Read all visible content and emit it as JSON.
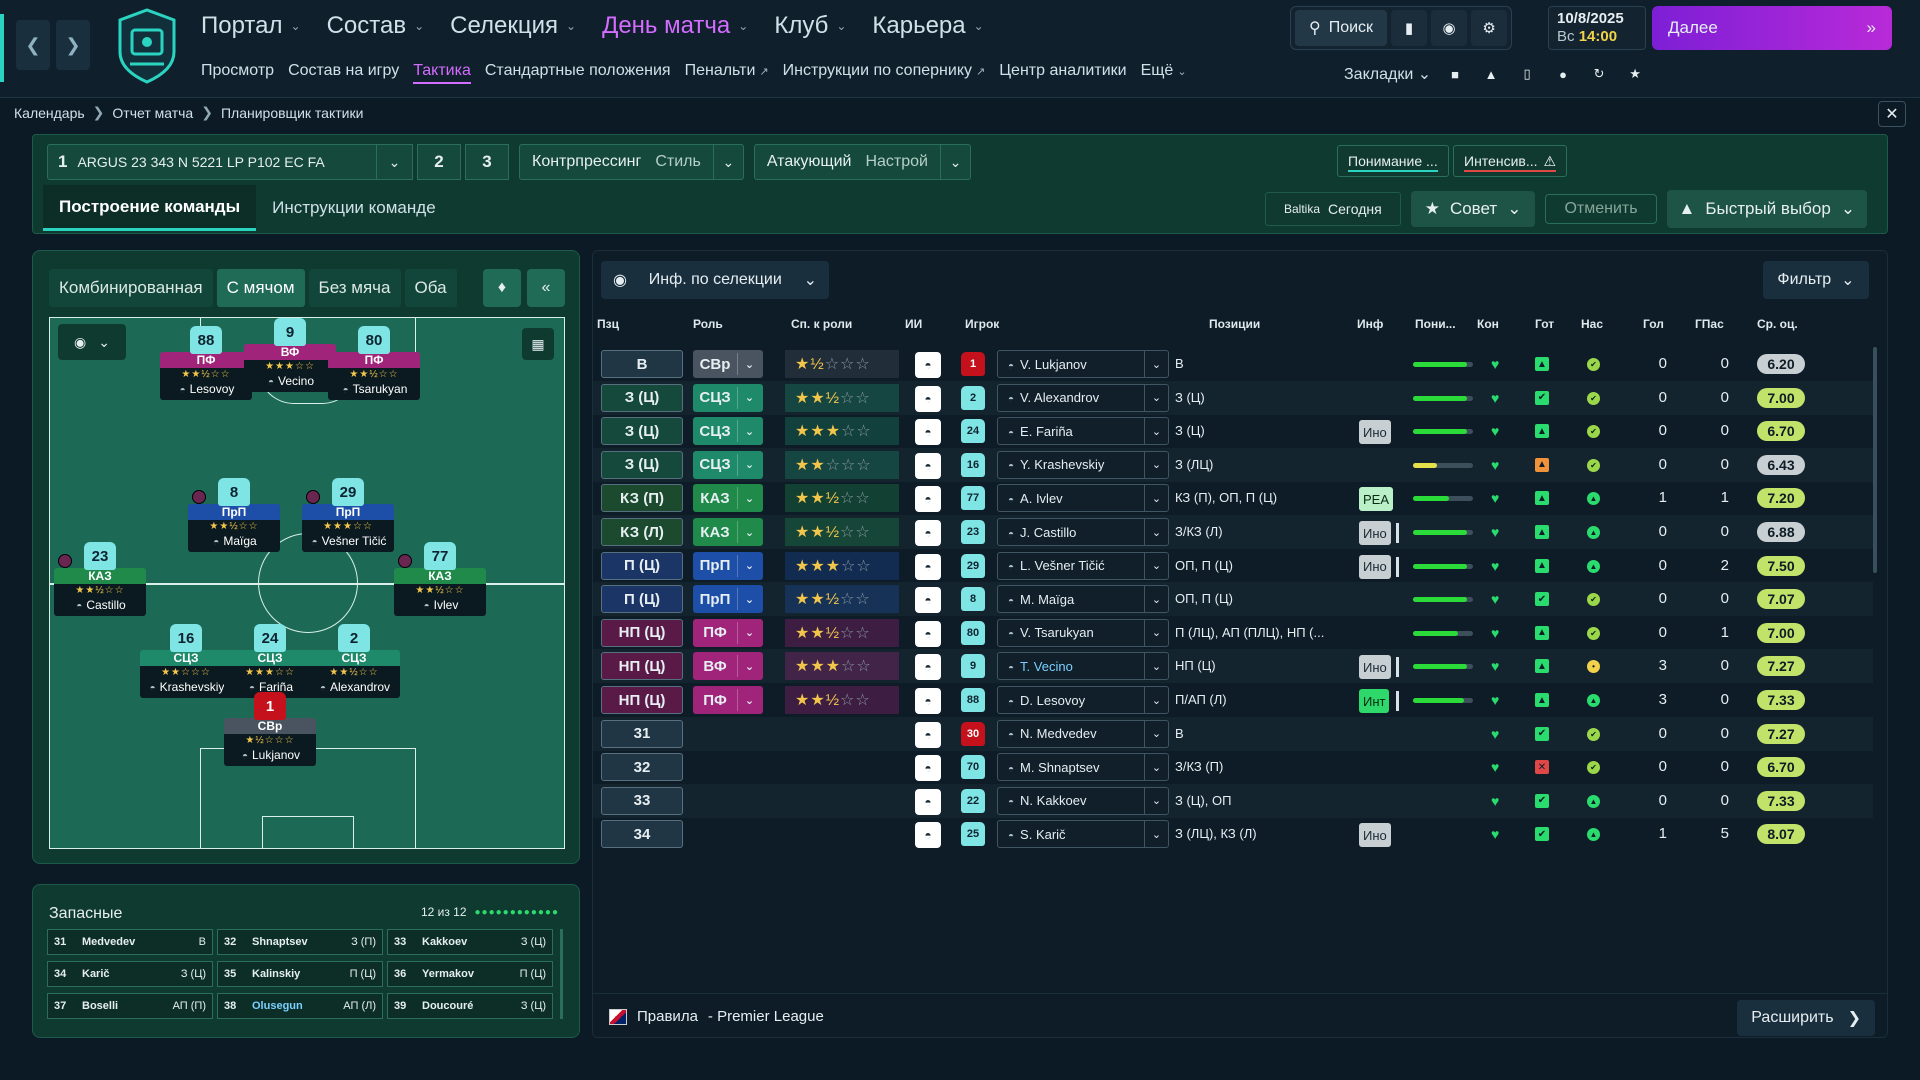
{
  "topbar": {
    "nav": [
      {
        "label": "Портал",
        "active": false
      },
      {
        "label": "Состав",
        "active": false
      },
      {
        "label": "Селекция",
        "active": false
      },
      {
        "label": "День матча",
        "active": true
      },
      {
        "label": "Клуб",
        "active": false
      },
      {
        "label": "Карьера",
        "active": false
      }
    ],
    "subnav": [
      {
        "label": "Просмотр",
        "active": false,
        "external": false
      },
      {
        "label": "Состав на игру",
        "active": false,
        "external": false
      },
      {
        "label": "Тактика",
        "active": true,
        "external": false
      },
      {
        "label": "Стандартные положения",
        "active": false,
        "external": false
      },
      {
        "label": "Пенальти",
        "active": false,
        "external": true
      },
      {
        "label": "Инструкции по сопернику",
        "active": false,
        "external": true
      },
      {
        "label": "Центр аналитики",
        "active": false,
        "external": false
      },
      {
        "label": "Ещё",
        "active": false,
        "external": false
      }
    ],
    "search_label": "Поиск",
    "date": "10/8/2025",
    "day": "Вс",
    "time": "14:00",
    "next_label": "Далее",
    "bookmarks_label": "Закладки"
  },
  "breadcrumb": [
    "Календарь",
    "Отчет матча",
    "Планировщик тактики"
  ],
  "tactics": {
    "slot_number": "1",
    "name": "ARGUS 23 343 N 5221 LP P102 EC FA",
    "slot2": "2",
    "slot3": "3",
    "style1_label": "Контрпрессинг",
    "style1_sub": "Стиль",
    "style2_label": "Атакующий",
    "style2_sub": "Настрой",
    "understanding_label": "Понимание ...",
    "intensity_label": "Интенсив...",
    "tabs": [
      {
        "label": "Построение команды",
        "active": true
      },
      {
        "label": "Инструкции команде",
        "active": false
      }
    ],
    "sponsor": "Baltika",
    "today": "Сегодня",
    "advice_label": "Совет",
    "cancel_label": "Отменить",
    "quick_label": "Быстрый выбор"
  },
  "pitch": {
    "view_tabs": [
      {
        "label": "Комбинированная",
        "active": false
      },
      {
        "label": "С мячом",
        "active": true
      },
      {
        "label": "Без мяча",
        "active": false
      },
      {
        "label": "Оба",
        "active": false
      }
    ],
    "players": [
      {
        "num": "88",
        "role": "ПФ",
        "stars": "★★½☆☆",
        "name": "Lesovoy",
        "color": "#a0247a",
        "gk": false,
        "dot": false
      },
      {
        "num": "9",
        "role": "ВФ",
        "stars": "★★★☆☆",
        "name": "Vecino",
        "color": "#a0247a",
        "gk": false,
        "dot": false
      },
      {
        "num": "80",
        "role": "ПФ",
        "stars": "★★½☆☆",
        "name": "Tsarukyan",
        "color": "#a0247a",
        "gk": false,
        "dot": false
      },
      {
        "num": "8",
        "role": "ПрП",
        "stars": "★★½☆☆",
        "name": "Maïga",
        "color": "#1d4fa8",
        "gk": false,
        "dot": true
      },
      {
        "num": "29",
        "role": "ПрП",
        "stars": "★★★☆☆",
        "name": "Vešner Tičić",
        "color": "#1d4fa8",
        "gk": false,
        "dot": true
      },
      {
        "num": "23",
        "role": "КАЗ",
        "stars": "★★½☆☆",
        "name": "Castillo",
        "color": "#1f8a4a",
        "gk": false,
        "dot": true
      },
      {
        "num": "77",
        "role": "КАЗ",
        "stars": "★★½☆☆",
        "name": "Ivlev",
        "color": "#1f8a4a",
        "gk": false,
        "dot": true
      },
      {
        "num": "16",
        "role": "СЦЗ",
        "stars": "★★☆☆☆",
        "name": "Krashevskiy",
        "color": "#1f8a6a",
        "gk": false,
        "dot": false
      },
      {
        "num": "24",
        "role": "СЦЗ",
        "stars": "★★★☆☆",
        "name": "Fariña",
        "color": "#1f8a6a",
        "gk": false,
        "dot": false
      },
      {
        "num": "2",
        "role": "СЦЗ",
        "stars": "★★½☆☆",
        "name": "Alexandrov",
        "color": "#1f8a6a",
        "gk": false,
        "dot": false
      },
      {
        "num": "1",
        "role": "СВр",
        "stars": "★½☆☆☆",
        "name": "Lukjanov",
        "color": "#4a5460",
        "gk": true,
        "dot": false
      }
    ]
  },
  "subs": {
    "title": "Запасные",
    "count": "12 из 12",
    "list": [
      {
        "num": "31",
        "name": "Medvedev",
        "pos": "В",
        "highlight": false
      },
      {
        "num": "32",
        "name": "Shnaptsev",
        "pos": "З (П)",
        "highlight": false
      },
      {
        "num": "33",
        "name": "Kakkoev",
        "pos": "З (Ц)",
        "highlight": false
      },
      {
        "num": "34",
        "name": "Karič",
        "pos": "З (Ц)",
        "highlight": false
      },
      {
        "num": "35",
        "name": "Kalinskiy",
        "pos": "П (Ц)",
        "highlight": false
      },
      {
        "num": "36",
        "name": "Yermakov",
        "pos": "П (Ц)",
        "highlight": false
      },
      {
        "num": "37",
        "name": "Boselli",
        "pos": "АП (П)",
        "highlight": false
      },
      {
        "num": "38",
        "name": "Olusegun",
        "pos": "АП (Л)",
        "highlight": true
      },
      {
        "num": "39",
        "name": "Doucouré",
        "pos": "З (Ц)",
        "highlight": false
      }
    ]
  },
  "table": {
    "info_label": "Инф. по селекции",
    "filter_label": "Фильтр",
    "headers": {
      "pos": "Пзц",
      "role": "Роль",
      "rating": "Сп. к роли",
      "ai": "ИИ",
      "player": "Игрок",
      "positions": "Позиции",
      "inf": "Инф",
      "underst": "Пони...",
      "cond": "Кон",
      "ready": "Гот",
      "morale": "Нас",
      "goals": "Гол",
      "assists": "ГПас",
      "avg": "Ср. оц."
    },
    "rows": [
      {
        "pos": "В",
        "role": "СВр",
        "stars_on": "★½",
        "stars_off": "☆☆☆",
        "shirt": "1",
        "gk": true,
        "name": "V. Lukjanov",
        "link": false,
        "positions": "В",
        "inf": "",
        "inf_type": "",
        "bar": false,
        "underst": 0.9,
        "ready": "up",
        "morale": "ok",
        "goals": "0",
        "assists": "0",
        "avg": "6.20",
        "avg_gray": true,
        "role_color": "#4a5460",
        "pos_color": "#203644"
      },
      {
        "pos": "З (Ц)",
        "role": "СЦЗ",
        "stars_on": "★★½",
        "stars_off": "☆☆",
        "shirt": "2",
        "gk": false,
        "name": "V. Alexandrov",
        "link": false,
        "positions": "З (Ц)",
        "inf": "",
        "inf_type": "",
        "bar": false,
        "underst": 0.9,
        "ready": "check",
        "morale": "ok",
        "goals": "0",
        "assists": "0",
        "avg": "7.00",
        "avg_gray": false,
        "role_color": "#1f8a6a",
        "pos_color": "#14493c"
      },
      {
        "pos": "З (Ц)",
        "role": "СЦЗ",
        "stars_on": "★★★",
        "stars_off": "☆☆",
        "shirt": "24",
        "gk": false,
        "name": "E. Fariña",
        "link": false,
        "positions": "З (Ц)",
        "inf": "Ино",
        "inf_type": "gray",
        "bar": false,
        "underst": 0.9,
        "ready": "up",
        "morale": "ok",
        "goals": "0",
        "assists": "0",
        "avg": "6.70",
        "avg_gray": false,
        "role_color": "#1f8a6a",
        "pos_color": "#14493c"
      },
      {
        "pos": "З (Ц)",
        "role": "СЦЗ",
        "stars_on": "★★",
        "stars_off": "☆☆☆",
        "shirt": "16",
        "gk": false,
        "name": "Y. Krashevskiy",
        "link": false,
        "positions": "З (ЛЦ)",
        "inf": "",
        "inf_type": "",
        "bar": false,
        "underst": 0.4,
        "ready": "warn",
        "morale": "ok",
        "goals": "0",
        "assists": "0",
        "avg": "6.43",
        "avg_gray": true,
        "role_color": "#1f8a6a",
        "pos_color": "#14493c"
      },
      {
        "pos": "КЗ (П)",
        "role": "КАЗ",
        "stars_on": "★★½",
        "stars_off": "☆☆",
        "shirt": "77",
        "gk": false,
        "name": "A. Ivlev",
        "link": false,
        "positions": "КЗ (П), ОП, П (Ц)",
        "inf": "РЕА",
        "inf_type": "lightgreen",
        "bar": false,
        "underst": 0.6,
        "ready": "up",
        "morale": "up",
        "goals": "1",
        "assists": "1",
        "avg": "7.20",
        "avg_gray": false,
        "role_color": "#1f8a4a",
        "pos_color": "#1b4a2e"
      },
      {
        "pos": "КЗ (Л)",
        "role": "КАЗ",
        "stars_on": "★★½",
        "stars_off": "☆☆",
        "shirt": "23",
        "gk": false,
        "name": "J. Castillo",
        "link": false,
        "positions": "З/КЗ (Л)",
        "inf": "Ино",
        "inf_type": "gray",
        "bar": true,
        "underst": 0.9,
        "ready": "up",
        "morale": "up",
        "goals": "0",
        "assists": "0",
        "avg": "6.88",
        "avg_gray": true,
        "role_color": "#1f8a4a",
        "pos_color": "#1b4a2e"
      },
      {
        "pos": "П (Ц)",
        "role": "ПрП",
        "stars_on": "★★★",
        "stars_off": "☆☆",
        "shirt": "29",
        "gk": false,
        "name": "L. Vešner Tičić",
        "link": false,
        "positions": "ОП, П (Ц)",
        "inf": "Ино",
        "inf_type": "gray",
        "bar": true,
        "underst": 0.9,
        "ready": "up",
        "morale": "up",
        "goals": "0",
        "assists": "2",
        "avg": "7.50",
        "avg_gray": false,
        "role_color": "#1d4fa8",
        "pos_color": "#1a3566"
      },
      {
        "pos": "П (Ц)",
        "role": "ПрП",
        "stars_on": "★★½",
        "stars_off": "☆☆",
        "shirt": "8",
        "gk": false,
        "name": "M. Maïga",
        "link": false,
        "positions": "ОП, П (Ц)",
        "inf": "",
        "inf_type": "",
        "bar": false,
        "underst": 0.9,
        "ready": "check",
        "morale": "ok",
        "goals": "0",
        "assists": "0",
        "avg": "7.07",
        "avg_gray": false,
        "role_color": "#1d4fa8",
        "pos_color": "#1a3566"
      },
      {
        "pos": "НП (Ц)",
        "role": "ПФ",
        "stars_on": "★★½",
        "stars_off": "☆☆",
        "shirt": "80",
        "gk": false,
        "name": "V. Tsarukyan",
        "link": false,
        "positions": "П (ЛЦ), АП (ПЛЦ), НП (...",
        "inf": "",
        "inf_type": "",
        "bar": false,
        "underst": 0.75,
        "ready": "up",
        "morale": "ok",
        "goals": "0",
        "assists": "1",
        "avg": "7.00",
        "avg_gray": false,
        "role_color": "#a0247a",
        "pos_color": "#5a1a48"
      },
      {
        "pos": "НП (Ц)",
        "role": "ВФ",
        "stars_on": "★★★",
        "stars_off": "☆☆",
        "shirt": "9",
        "gk": false,
        "name": "T. Vecino",
        "link": true,
        "positions": "НП (Ц)",
        "inf": "Ино",
        "inf_type": "gray",
        "bar": true,
        "underst": 0.9,
        "ready": "up",
        "morale": "yellow",
        "goals": "3",
        "assists": "0",
        "avg": "7.27",
        "avg_gray": false,
        "role_color": "#a0247a",
        "pos_color": "#5a1a48"
      },
      {
        "pos": "НП (Ц)",
        "role": "ПФ",
        "stars_on": "★★½",
        "stars_off": "☆☆",
        "shirt": "88",
        "gk": false,
        "name": "D. Lesovoy",
        "link": false,
        "positions": "П/АП (Л)",
        "inf": "Инт",
        "inf_type": "green",
        "bar": true,
        "underst": 0.85,
        "ready": "up",
        "morale": "up",
        "goals": "3",
        "assists": "0",
        "avg": "7.33",
        "avg_gray": false,
        "role_color": "#a0247a",
        "pos_color": "#5a1a48"
      },
      {
        "pos": "31",
        "role": "",
        "stars_on": "",
        "stars_off": "",
        "shirt": "30",
        "gk": true,
        "name": "N. Medvedev",
        "link": false,
        "positions": "В",
        "inf": "",
        "inf_type": "",
        "bar": false,
        "underst": 0,
        "ready": "check",
        "morale": "ok",
        "goals": "0",
        "assists": "0",
        "avg": "7.27",
        "avg_gray": false,
        "role_color": "",
        "pos_color": "#203644"
      },
      {
        "pos": "32",
        "role": "",
        "stars_on": "",
        "stars_off": "",
        "shirt": "70",
        "gk": false,
        "name": "M. Shnaptsev",
        "link": false,
        "positions": "З/КЗ (П)",
        "inf": "",
        "inf_type": "",
        "bar": false,
        "underst": 0,
        "ready": "bad",
        "morale": "ok",
        "goals": "0",
        "assists": "0",
        "avg": "6.70",
        "avg_gray": false,
        "role_color": "",
        "pos_color": "#203644"
      },
      {
        "pos": "33",
        "role": "",
        "stars_on": "",
        "stars_off": "",
        "shirt": "22",
        "gk": false,
        "name": "N. Kakkoev",
        "link": false,
        "positions": "З (Ц), ОП",
        "inf": "",
        "inf_type": "",
        "bar": false,
        "underst": 0,
        "ready": "check",
        "morale": "up",
        "goals": "0",
        "assists": "0",
        "avg": "7.33",
        "avg_gray": false,
        "role_color": "",
        "pos_color": "#203644"
      },
      {
        "pos": "34",
        "role": "",
        "stars_on": "",
        "stars_off": "",
        "shirt": "25",
        "gk": false,
        "name": "S. Karič",
        "link": false,
        "positions": "З (ЛЦ), КЗ (Л)",
        "inf": "Ино",
        "inf_type": "gray",
        "bar": false,
        "underst": 0,
        "ready": "check",
        "morale": "up",
        "goals": "1",
        "assists": "5",
        "avg": "8.07",
        "avg_gray": false,
        "role_color": "",
        "pos_color": "#203644"
      }
    ],
    "rules_label": "Правила",
    "rules_league": "- Premier League",
    "expand_label": "Расширить"
  }
}
